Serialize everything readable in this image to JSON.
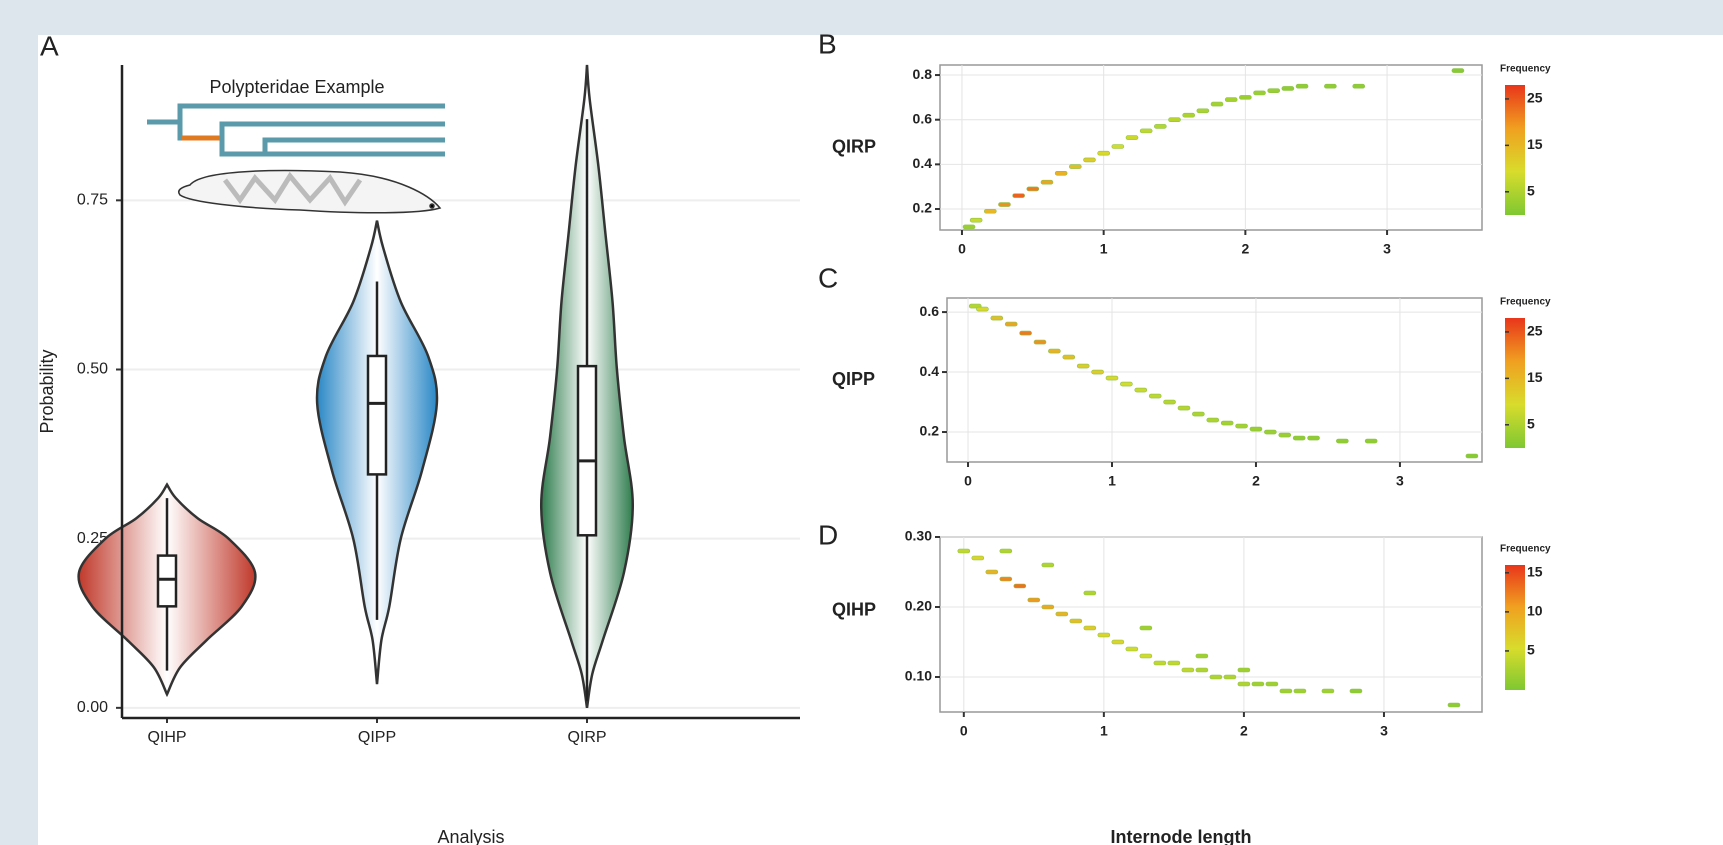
{
  "chart_data": [
    {
      "type": "violin",
      "panel": "A",
      "annotation": "Polypteridae Example",
      "x_label": "Analysis",
      "y_label": "Probability",
      "categories": [
        "QIHP",
        "QIPP",
        "QIRP"
      ],
      "colors": [
        "#c0392b",
        "#2a88c6",
        "#2f7d4e"
      ],
      "ylim": [
        -0.015,
        0.95
      ],
      "yticks": [
        {
          "value": 0,
          "label": "0.00"
        },
        {
          "value": 0.25,
          "label": "0.25"
        },
        {
          "value": 0.5,
          "label": "0.50"
        },
        {
          "value": 0.75,
          "label": "0.75"
        }
      ],
      "grid": true,
      "violins": [
        {
          "y": [
            0.02,
            0.06,
            0.1,
            0.15,
            0.2,
            0.25,
            0.28,
            0.31,
            0.33
          ],
          "density": [
            0,
            0.15,
            0.45,
            0.85,
            1.0,
            0.7,
            0.35,
            0.1,
            0
          ]
        },
        {
          "y": [
            0.035,
            0.1,
            0.15,
            0.25,
            0.35,
            0.45,
            0.52,
            0.6,
            0.68,
            0.72
          ],
          "density": [
            0,
            0.05,
            0.14,
            0.27,
            0.51,
            0.68,
            0.58,
            0.27,
            0.07,
            0
          ]
        },
        {
          "y": [
            0,
            0.05,
            0.1,
            0.2,
            0.3,
            0.4,
            0.5,
            0.6,
            0.7,
            0.8,
            0.9,
            0.95
          ],
          "density": [
            0,
            0.06,
            0.18,
            0.42,
            0.52,
            0.42,
            0.34,
            0.29,
            0.21,
            0.13,
            0.03,
            0
          ]
        }
      ],
      "boxes": [
        {
          "low": 0.055,
          "q1": 0.15,
          "median": 0.19,
          "q3": 0.225,
          "high": 0.31
        },
        {
          "low": 0.13,
          "q1": 0.345,
          "median": 0.45,
          "q3": 0.52,
          "high": 0.63
        },
        {
          "low": 0.01,
          "q1": 0.255,
          "median": 0.365,
          "q3": 0.505,
          "high": 0.87
        }
      ]
    },
    {
      "type": "scatter",
      "panel": "B",
      "y_label": "QIRP",
      "xlim": [
        -0.155,
        3.67
      ],
      "xticks": [
        0,
        1,
        2,
        3
      ],
      "ylim": [
        0.106,
        0.845
      ],
      "yticks": [
        0.2,
        0.4,
        0.6,
        0.8
      ],
      "grid": true,
      "legend_title": "Frequency",
      "clim": [
        0,
        28
      ],
      "cticks": [
        5,
        15,
        25
      ],
      "colors": [
        "#7ec832",
        "#d8dc2c",
        "#f0a020",
        "#e8361a"
      ],
      "x": [
        0.05,
        0.1,
        0.2,
        0.3,
        0.4,
        0.5,
        0.6,
        0.7,
        0.8,
        0.9,
        1.0,
        1.1,
        1.2,
        1.3,
        1.4,
        1.5,
        1.6,
        1.7,
        1.8,
        1.9,
        2.0,
        2.1,
        2.2,
        2.3,
        2.4,
        2.6,
        2.8,
        3.5
      ],
      "y": [
        0.12,
        0.15,
        0.19,
        0.22,
        0.26,
        0.29,
        0.32,
        0.36,
        0.39,
        0.42,
        0.45,
        0.48,
        0.52,
        0.55,
        0.57,
        0.6,
        0.62,
        0.64,
        0.67,
        0.69,
        0.7,
        0.72,
        0.73,
        0.74,
        0.75,
        0.75,
        0.75,
        0.82
      ],
      "frequency": [
        3,
        8,
        15,
        20,
        24,
        22,
        18,
        16,
        14,
        12,
        10,
        9,
        8,
        7,
        6,
        6,
        5,
        5,
        4,
        4,
        3,
        3,
        3,
        2,
        2,
        2,
        2,
        1
      ]
    },
    {
      "type": "scatter",
      "panel": "C",
      "y_label": "QIPP",
      "xlim": [
        -0.146,
        3.57
      ],
      "xticks": [
        0,
        1,
        2,
        3
      ],
      "ylim": [
        0.1,
        0.647
      ],
      "yticks": [
        0.2,
        0.4,
        0.6
      ],
      "grid": true,
      "legend_title": "Frequency",
      "clim": [
        0,
        28
      ],
      "cticks": [
        5,
        15,
        25
      ],
      "colors": [
        "#7ec832",
        "#d8dc2c",
        "#f0a020",
        "#e8361a"
      ],
      "x": [
        0.05,
        0.1,
        0.2,
        0.3,
        0.4,
        0.5,
        0.6,
        0.7,
        0.8,
        0.9,
        1.0,
        1.1,
        1.2,
        1.3,
        1.4,
        1.5,
        1.6,
        1.7,
        1.8,
        1.9,
        2.0,
        2.1,
        2.2,
        2.3,
        2.4,
        2.6,
        2.8,
        3.5
      ],
      "y": [
        0.62,
        0.61,
        0.58,
        0.56,
        0.53,
        0.5,
        0.47,
        0.45,
        0.42,
        0.4,
        0.38,
        0.36,
        0.34,
        0.32,
        0.3,
        0.28,
        0.26,
        0.24,
        0.23,
        0.22,
        0.21,
        0.2,
        0.19,
        0.18,
        0.18,
        0.17,
        0.17,
        0.12
      ],
      "frequency": [
        6,
        10,
        14,
        18,
        22,
        20,
        16,
        14,
        12,
        12,
        10,
        9,
        8,
        7,
        6,
        6,
        5,
        5,
        4,
        4,
        3,
        3,
        3,
        2,
        2,
        2,
        2,
        1
      ]
    },
    {
      "type": "scatter",
      "panel": "D",
      "y_label": "QIHP",
      "x_label": "Internode length",
      "xlim": [
        -0.17,
        3.7
      ],
      "xticks": [
        0,
        1,
        2,
        3
      ],
      "ylim": [
        0.05,
        0.3
      ],
      "yticks": [
        {
          "value": 0.1,
          "label": "0.10"
        },
        {
          "value": 0.2,
          "label": "0.20"
        },
        {
          "value": 0.3,
          "label": "0.30"
        }
      ],
      "grid": true,
      "legend_title": "Frequency",
      "clim": [
        0,
        16
      ],
      "cticks": [
        5,
        10,
        15
      ],
      "colors": [
        "#7ec832",
        "#d8dc2c",
        "#f0a020",
        "#e8361a"
      ],
      "x": [
        0.0,
        0.1,
        0.2,
        0.3,
        0.4,
        0.5,
        0.6,
        0.7,
        0.8,
        0.9,
        1.0,
        1.1,
        1.2,
        1.3,
        1.4,
        1.5,
        1.6,
        1.7,
        1.8,
        1.9,
        2.0,
        2.1,
        2.2,
        2.3,
        2.4,
        2.6,
        2.8,
        3.5,
        0.3,
        0.6,
        0.9,
        1.3,
        1.7,
        2.0
      ],
      "y": [
        0.28,
        0.27,
        0.25,
        0.24,
        0.23,
        0.21,
        0.2,
        0.19,
        0.18,
        0.17,
        0.16,
        0.15,
        0.14,
        0.13,
        0.12,
        0.12,
        0.11,
        0.11,
        0.1,
        0.1,
        0.09,
        0.09,
        0.09,
        0.08,
        0.08,
        0.08,
        0.08,
        0.06,
        0.28,
        0.26,
        0.22,
        0.17,
        0.13,
        0.11
      ],
      "frequency": [
        4,
        6,
        9,
        12,
        13,
        11,
        10,
        9,
        8,
        7,
        6,
        6,
        5,
        5,
        4,
        4,
        4,
        3,
        3,
        3,
        3,
        2,
        2,
        2,
        2,
        2,
        1,
        1,
        3,
        3,
        3,
        2,
        2,
        2
      ]
    }
  ]
}
